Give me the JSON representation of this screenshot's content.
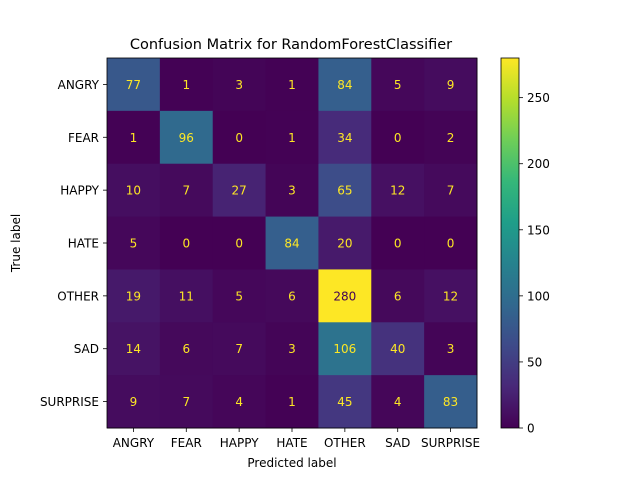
{
  "chart_data": {
    "type": "heatmap",
    "title": "Confusion Matrix for RandomForestClassifier",
    "xlabel": "Predicted label",
    "ylabel": "True label",
    "x_categories": [
      "ANGRY",
      "FEAR",
      "HAPPY",
      "HATE",
      "OTHER",
      "SAD",
      "SURPRISE"
    ],
    "y_categories": [
      "ANGRY",
      "FEAR",
      "HAPPY",
      "HATE",
      "OTHER",
      "SAD",
      "SURPRISE"
    ],
    "matrix": [
      [
        77,
        1,
        3,
        1,
        84,
        5,
        9
      ],
      [
        1,
        96,
        0,
        1,
        34,
        0,
        2
      ],
      [
        10,
        7,
        27,
        3,
        65,
        12,
        7
      ],
      [
        5,
        0,
        0,
        84,
        20,
        0,
        0
      ],
      [
        19,
        11,
        5,
        6,
        280,
        6,
        12
      ],
      [
        14,
        6,
        7,
        3,
        106,
        40,
        3
      ],
      [
        9,
        7,
        4,
        1,
        45,
        4,
        83
      ]
    ],
    "colormap": "viridis",
    "colorbar": {
      "vmin": 0,
      "vmax": 280,
      "ticks": [
        0,
        50,
        100,
        150,
        200,
        250
      ]
    },
    "grid": false
  }
}
